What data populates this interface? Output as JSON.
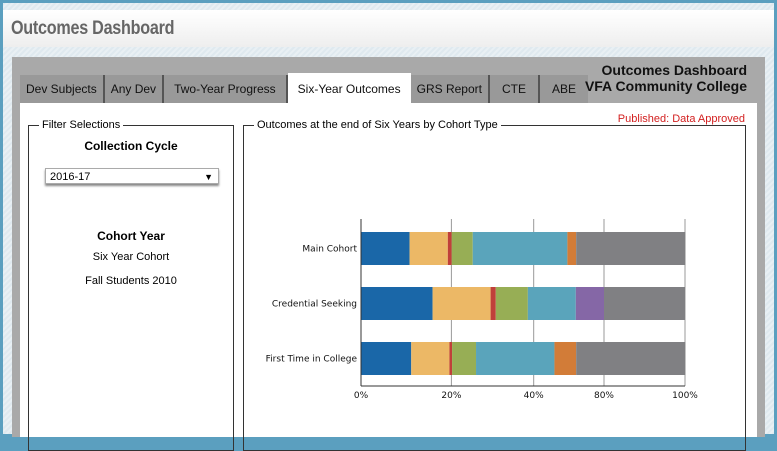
{
  "window": {
    "title": "Outcomes Dashboard"
  },
  "brand": {
    "line1": "Outcomes Dashboard",
    "line2": "VFA Community College"
  },
  "tabs": [
    {
      "label": "Dev Subjects"
    },
    {
      "label": "Any Dev"
    },
    {
      "label": "Two-Year Progress"
    },
    {
      "label": "Six-Year Outcomes",
      "active": true
    },
    {
      "label": "GRS Report"
    },
    {
      "label": "CTE"
    },
    {
      "label": "ABE"
    }
  ],
  "status": "Published: Data Approved",
  "filter": {
    "legend": "Filter Selections",
    "collection_label": "Collection Cycle",
    "collection_value": "2016-17",
    "cohort_year_label": "Cohort Year",
    "cohort_line1": "Six Year Cohort",
    "cohort_line2": "Fall Students 2010"
  },
  "chart_data": {
    "type": "bar",
    "orientation": "horizontal",
    "stacked": true,
    "title": "Outcomes at the end of Six Years by Cohort Type",
    "categories": [
      "Main Cohort",
      "Credential Seeking",
      "First Time in College"
    ],
    "tick_labels": [
      "0%",
      "20%",
      "40%",
      "80%",
      "100%"
    ],
    "grid": true,
    "segment_colors": [
      "#1a67a8",
      "#ecb866",
      "#c0403a",
      "#97ae55",
      "#5aa4bb",
      "#d27c38",
      "#8567a6",
      "#808083"
    ],
    "series": [
      {
        "values": [
          15.0,
          22.1,
          15.5
        ]
      },
      {
        "values": [
          11.8,
          17.9,
          11.8
        ]
      },
      {
        "values": [
          1.2,
          1.6,
          0.8
        ]
      },
      {
        "values": [
          6.5,
          9.9,
          7.4
        ]
      },
      {
        "values": [
          29.2,
          14.8,
          24.2
        ]
      },
      {
        "values": [
          2.7,
          0,
          6.7
        ]
      },
      {
        "values": [
          0,
          8.7,
          0
        ]
      },
      {
        "values": [
          33.7,
          25.0,
          33.7
        ]
      }
    ]
  }
}
